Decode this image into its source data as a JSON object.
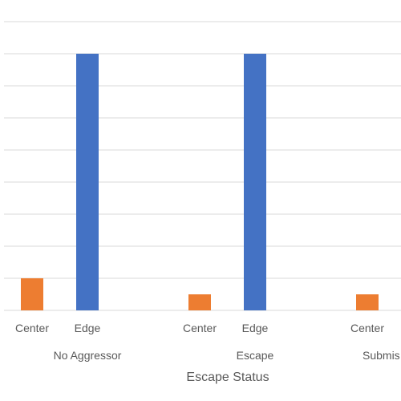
{
  "chart_data": {
    "type": "bar",
    "groups": [
      "No Aggressor",
      "Escape",
      "Submis"
    ],
    "categories": [
      "Center",
      "Edge",
      "Center",
      "Edge",
      "Center"
    ],
    "category_group": [
      0,
      0,
      1,
      1,
      2
    ],
    "values": [
      1.0,
      8.0,
      0.5,
      8.0,
      0.5
    ],
    "bar_colors": [
      "#ED7D31",
      "#4472C4",
      "#ED7D31",
      "#4472C4",
      "#ED7D31"
    ],
    "xlabel": "Escape Status",
    "ylabel": "",
    "ylim": [
      0,
      9
    ],
    "grid": true
  }
}
